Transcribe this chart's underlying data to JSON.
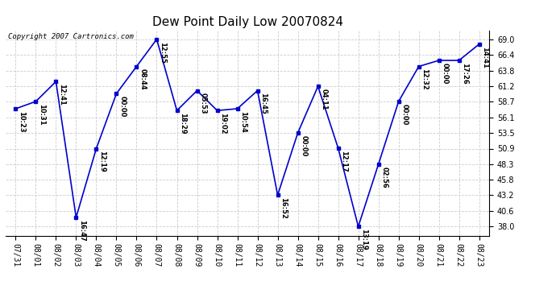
{
  "title": "Dew Point Daily Low 20070824",
  "copyright": "Copyright 2007 Cartronics.com",
  "dates": [
    "07/31",
    "08/01",
    "08/02",
    "08/03",
    "08/04",
    "08/05",
    "08/06",
    "08/07",
    "08/08",
    "08/09",
    "08/10",
    "08/11",
    "08/12",
    "08/13",
    "08/14",
    "08/15",
    "08/16",
    "08/17",
    "08/18",
    "08/19",
    "08/20",
    "08/21",
    "08/22",
    "08/23"
  ],
  "values": [
    57.5,
    58.7,
    62.0,
    39.5,
    50.9,
    60.0,
    64.5,
    69.0,
    57.2,
    60.5,
    57.2,
    57.5,
    60.5,
    43.2,
    53.5,
    61.2,
    51.0,
    38.0,
    48.3,
    58.7,
    64.5,
    65.5,
    65.5,
    68.2
  ],
  "labels": [
    "10:23",
    "10:31",
    "12:41",
    "16:47",
    "12:19",
    "00:00",
    "08:44",
    "12:55",
    "18:29",
    "05:53",
    "19:02",
    "10:54",
    "16:45",
    "16:52",
    "00:00",
    "04:11",
    "12:17",
    "13:19",
    "02:56",
    "00:00",
    "12:32",
    "00:00",
    "17:26",
    "14:41"
  ],
  "yticks": [
    38.0,
    40.6,
    43.2,
    45.8,
    48.3,
    50.9,
    53.5,
    56.1,
    58.7,
    61.2,
    63.8,
    66.4,
    69.0
  ],
  "ylim": [
    36.5,
    70.5
  ],
  "line_color": "#0000cc",
  "marker_color": "#0000cc",
  "bg_color": "#ffffff",
  "grid_color": "#cccccc",
  "title_fontsize": 11,
  "label_fontsize": 6,
  "tick_fontsize": 7,
  "copyright_fontsize": 6.5
}
